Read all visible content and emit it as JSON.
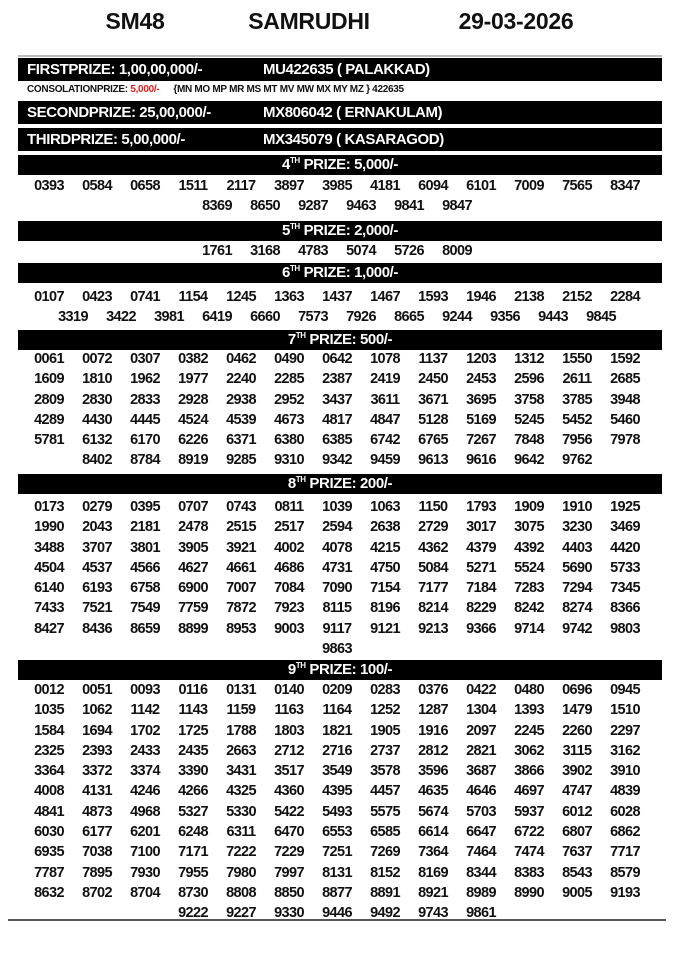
{
  "header": {
    "code": "SM48",
    "name": "SAMRUDHI",
    "date": "29-03-2026"
  },
  "first_prize": {
    "label": "FIRSTPRIZE: 1,00,00,000/-",
    "winner": "MU422635 ( PALAKKAD)"
  },
  "consolation": {
    "label": "CONSOLATIONPRIZE: ",
    "amount": "5,000/-",
    "series": "{MN MO MP MR MS MT MV MW MX MY MZ } 422635",
    "amount_color": "#e01b1b"
  },
  "second_prize": {
    "label": "SECONDPRIZE: 25,00,000/-",
    "winner": "MX806042 ( ERNAKULAM)"
  },
  "third_prize": {
    "label": "THIRDPRIZE: 5,00,000/-",
    "winner": "MX345079 ( KASARAGOD)"
  },
  "sections": [
    {
      "ord": "4",
      "sup": "TH",
      "title": " PRIZE: 5,000/-",
      "numbers": [
        "0393",
        "0584",
        "0658",
        "1511",
        "2117",
        "3897",
        "3985",
        "4181",
        "6094",
        "6101",
        "7009",
        "7565",
        "8347",
        "8369",
        "8650",
        "9287",
        "9463",
        "9841",
        "9847"
      ]
    },
    {
      "ord": "5",
      "sup": "TH",
      "title": " PRIZE: 2,000/-",
      "numbers": [
        "1761",
        "3168",
        "4783",
        "5074",
        "5726",
        "8009"
      ]
    },
    {
      "ord": "6",
      "sup": "TH",
      "title": " PRIZE: 1,000/-",
      "numbers": [
        "0107",
        "0423",
        "0741",
        "1154",
        "1245",
        "1363",
        "1437",
        "1467",
        "1593",
        "1946",
        "2138",
        "2152",
        "2284",
        "3319",
        "3422",
        "3981",
        "6419",
        "6660",
        "7573",
        "7926",
        "8665",
        "9244",
        "9356",
        "9443",
        "9845"
      ]
    },
    {
      "ord": "7",
      "sup": "TH",
      "title": " PRIZE: 500/-",
      "numbers": [
        "0061",
        "0072",
        "0307",
        "0382",
        "0462",
        "0490",
        "0642",
        "1078",
        "1137",
        "1203",
        "1312",
        "1550",
        "1592",
        "1609",
        "1810",
        "1962",
        "1977",
        "2240",
        "2285",
        "2387",
        "2419",
        "2450",
        "2453",
        "2596",
        "2611",
        "2685",
        "2809",
        "2830",
        "2833",
        "2928",
        "2938",
        "2952",
        "3437",
        "3611",
        "3671",
        "3695",
        "3758",
        "3785",
        "3948",
        "4289",
        "4430",
        "4445",
        "4524",
        "4539",
        "4673",
        "4817",
        "4847",
        "5128",
        "5169",
        "5245",
        "5452",
        "5460",
        "5781",
        "6132",
        "6170",
        "6226",
        "6371",
        "6380",
        "6385",
        "6742",
        "6765",
        "7267",
        "7848",
        "7956",
        "7978",
        "8402",
        "8784",
        "8919",
        "9285",
        "9310",
        "9342",
        "9459",
        "9613",
        "9616",
        "9642",
        "9762"
      ]
    },
    {
      "ord": "8",
      "sup": "TH",
      "title": " PRIZE: 200/-",
      "numbers": [
        "0173",
        "0279",
        "0395",
        "0707",
        "0743",
        "0811",
        "1039",
        "1063",
        "1150",
        "1793",
        "1909",
        "1910",
        "1925",
        "1990",
        "2043",
        "2181",
        "2478",
        "2515",
        "2517",
        "2594",
        "2638",
        "2729",
        "3017",
        "3075",
        "3230",
        "3469",
        "3488",
        "3707",
        "3801",
        "3905",
        "3921",
        "4002",
        "4078",
        "4215",
        "4362",
        "4379",
        "4392",
        "4403",
        "4420",
        "4504",
        "4537",
        "4566",
        "4627",
        "4661",
        "4686",
        "4731",
        "4750",
        "5084",
        "5271",
        "5524",
        "5690",
        "5733",
        "6140",
        "6193",
        "6758",
        "6900",
        "7007",
        "7084",
        "7090",
        "7154",
        "7177",
        "7184",
        "7283",
        "7294",
        "7345",
        "7433",
        "7521",
        "7549",
        "7759",
        "7872",
        "7923",
        "8115",
        "8196",
        "8214",
        "8229",
        "8242",
        "8274",
        "8366",
        "8427",
        "8436",
        "8659",
        "8899",
        "8953",
        "9003",
        "9117",
        "9121",
        "9213",
        "9366",
        "9714",
        "9742",
        "9803",
        "9863"
      ]
    },
    {
      "ord": "9",
      "sup": "TH",
      "title": " PRIZE: 100/-",
      "numbers": [
        "0012",
        "0051",
        "0093",
        "0116",
        "0131",
        "0140",
        "0209",
        "0283",
        "0376",
        "0422",
        "0480",
        "0696",
        "0945",
        "1035",
        "1062",
        "1142",
        "1143",
        "1159",
        "1163",
        "1164",
        "1252",
        "1287",
        "1304",
        "1393",
        "1479",
        "1510",
        "1584",
        "1694",
        "1702",
        "1725",
        "1788",
        "1803",
        "1821",
        "1905",
        "1916",
        "2097",
        "2245",
        "2260",
        "2297",
        "2325",
        "2393",
        "2433",
        "2435",
        "2663",
        "2712",
        "2716",
        "2737",
        "2812",
        "2821",
        "3062",
        "3115",
        "3162",
        "3364",
        "3372",
        "3374",
        "3390",
        "3431",
        "3517",
        "3549",
        "3578",
        "3596",
        "3687",
        "3866",
        "3902",
        "3910",
        "4008",
        "4131",
        "4246",
        "4266",
        "4325",
        "4360",
        "4395",
        "4457",
        "4635",
        "4646",
        "4697",
        "4747",
        "4839",
        "4841",
        "4873",
        "4968",
        "5327",
        "5330",
        "5422",
        "5493",
        "5575",
        "5674",
        "5703",
        "5937",
        "6012",
        "6028",
        "6030",
        "6177",
        "6201",
        "6248",
        "6311",
        "6470",
        "6553",
        "6585",
        "6614",
        "6647",
        "6722",
        "6807",
        "6862",
        "6935",
        "7038",
        "7100",
        "7171",
        "7222",
        "7229",
        "7251",
        "7269",
        "7364",
        "7464",
        "7474",
        "7637",
        "7717",
        "7787",
        "7895",
        "7930",
        "7955",
        "7980",
        "7997",
        "8131",
        "8152",
        "8169",
        "8344",
        "8383",
        "8543",
        "8579",
        "8632",
        "8702",
        "8704",
        "8730",
        "8808",
        "8850",
        "8877",
        "8891",
        "8921",
        "8989",
        "8990",
        "9005",
        "9193",
        "9222",
        "9227",
        "9330",
        "9446",
        "9492",
        "9743",
        "9861"
      ]
    }
  ]
}
